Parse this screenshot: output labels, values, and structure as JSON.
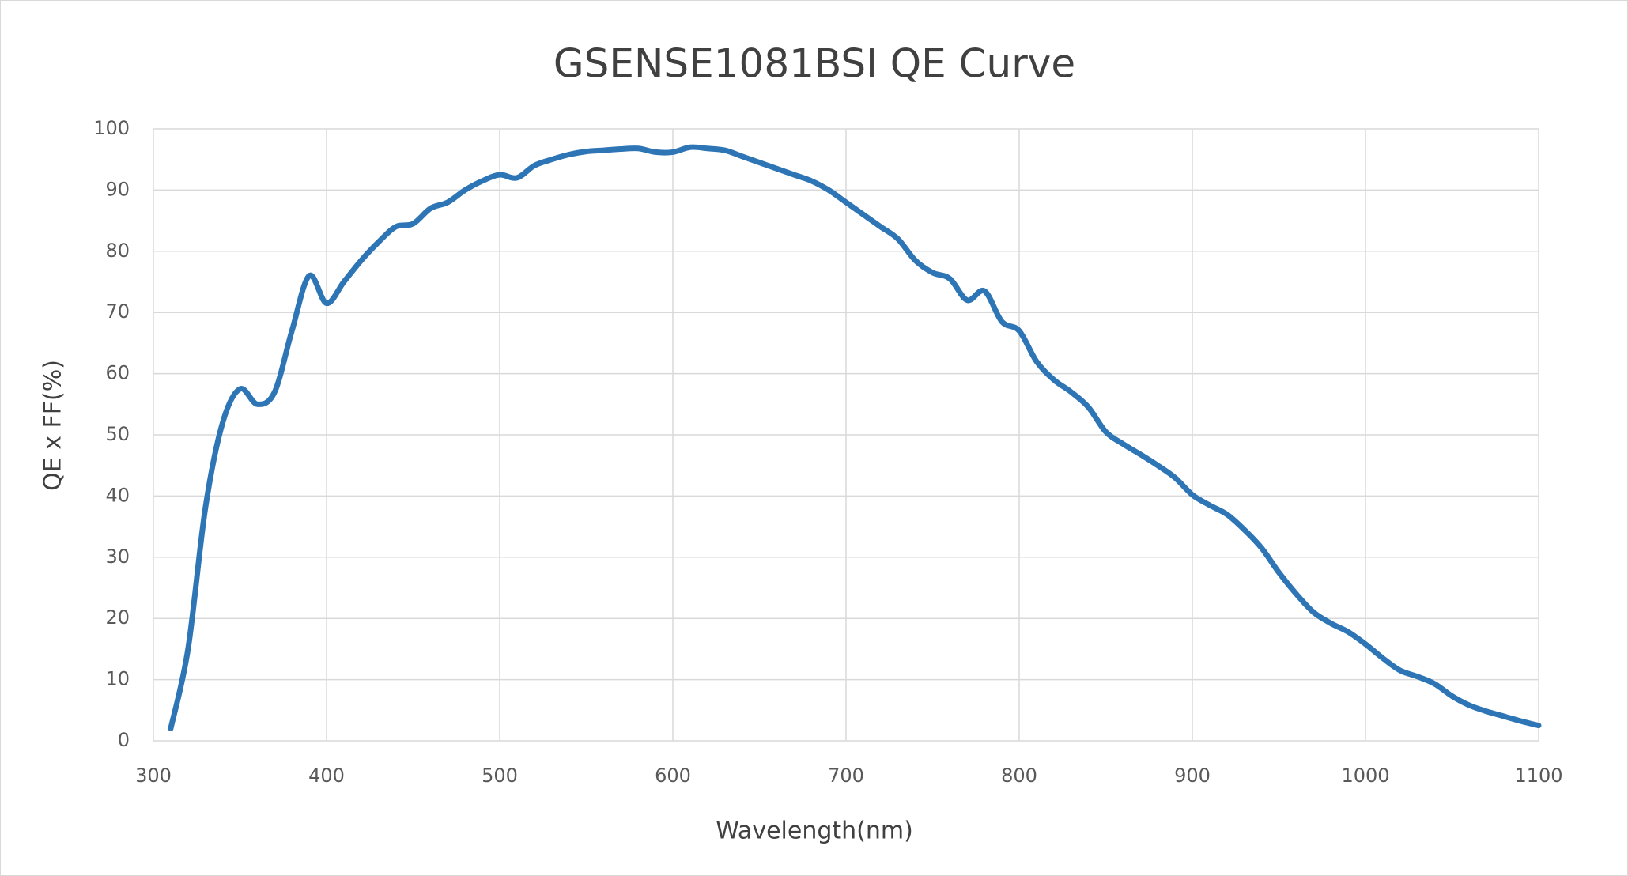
{
  "chart_data": {
    "type": "line",
    "title": "GSENSE1081BSI QE  Curve",
    "x_label": "Wavelength(nm)",
    "y_label": "QE x FF(%)",
    "xlim": [
      300,
      1100
    ],
    "xticks": [
      300,
      400,
      500,
      600,
      700,
      800,
      900,
      1000,
      1100
    ],
    "ylim": [
      0,
      100
    ],
    "yticks": [
      0,
      10,
      20,
      30,
      40,
      50,
      60,
      70,
      80,
      90,
      100
    ],
    "grid": true,
    "x": [
      310,
      320,
      330,
      340,
      350,
      360,
      370,
      380,
      390,
      400,
      410,
      420,
      430,
      440,
      450,
      460,
      470,
      480,
      490,
      500,
      510,
      520,
      530,
      540,
      550,
      560,
      570,
      580,
      590,
      600,
      610,
      620,
      630,
      640,
      650,
      660,
      670,
      680,
      690,
      700,
      710,
      720,
      730,
      740,
      750,
      760,
      770,
      780,
      790,
      800,
      810,
      820,
      830,
      840,
      850,
      860,
      870,
      880,
      890,
      900,
      910,
      920,
      930,
      940,
      950,
      960,
      970,
      980,
      990,
      1000,
      1010,
      1020,
      1030,
      1040,
      1050,
      1060,
      1070,
      1080,
      1090,
      1100
    ],
    "series": [
      {
        "name": "QE x FF",
        "color": "#2e75b6",
        "values": [
          2,
          15,
          38,
          52,
          57.5,
          55,
          57,
          67,
          76,
          71.5,
          75,
          78.5,
          81.5,
          84,
          84.5,
          87,
          88,
          90,
          91.5,
          92.5,
          92,
          94,
          95,
          95.8,
          96.3,
          96.5,
          96.7,
          96.8,
          96.2,
          96.2,
          97,
          96.8,
          96.5,
          95.5,
          94.5,
          93.5,
          92.5,
          91.5,
          90,
          88,
          86,
          84,
          82,
          78.5,
          76.5,
          75.5,
          72,
          73.5,
          68.5,
          67,
          62,
          59,
          57,
          54.5,
          50.5,
          48.5,
          46.8,
          45,
          43,
          40.2,
          38.5,
          37,
          34.5,
          31.5,
          27.5,
          24,
          21,
          19.2,
          17.8,
          15.8,
          13.5,
          11.5,
          10.5,
          9.3,
          7.3,
          5.8,
          4.8,
          4,
          3.2,
          2.5
        ]
      }
    ]
  }
}
